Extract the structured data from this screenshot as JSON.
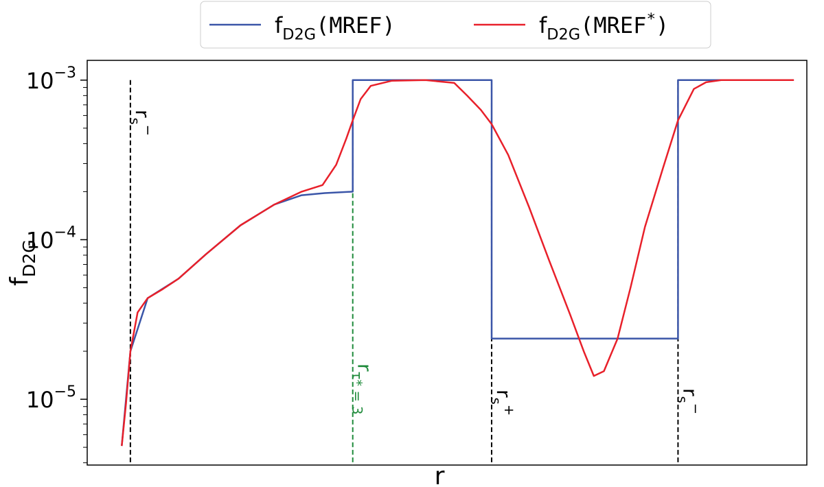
{
  "chart_data": {
    "type": "line",
    "x_label": "r",
    "y_label": {
      "base": "f",
      "sub": "D2G"
    },
    "log_y": true,
    "xlim": [
      0,
      100
    ],
    "ylim": [
      3.87e-06,
      0.00133
    ],
    "yticks": [
      {
        "value": 1e-05,
        "label": "10",
        "exponent": "−5"
      },
      {
        "value": 0.0001,
        "label": "10",
        "exponent": "−4"
      },
      {
        "value": 0.001,
        "label": "10",
        "exponent": "−3"
      }
    ],
    "yminorticks": [
      4e-06,
      5e-06,
      6e-06,
      7e-06,
      8e-06,
      9e-06,
      2e-05,
      3e-05,
      4e-05,
      5e-05,
      6e-05,
      7e-05,
      8e-05,
      9e-05,
      0.0002,
      0.0003,
      0.0004,
      0.0005,
      0.0006,
      0.0007,
      0.0008,
      0.0009
    ],
    "legend": "top-outside",
    "series": [
      {
        "name": {
          "base": "f",
          "sub": "D2G",
          "text": "(MREF)"
        },
        "color": "#3a55a8",
        "x": [
          4.8,
          6.0,
          8.4,
          12.7,
          16.5,
          21.3,
          26.0,
          29.8,
          33.0,
          36.9,
          36.9,
          56.2,
          56.2,
          82.1,
          82.1,
          98.2
        ],
        "values": [
          5.1e-06,
          2e-05,
          4.3e-05,
          5.7e-05,
          8.1e-05,
          0.000123,
          0.000166,
          0.00019,
          0.000196,
          0.0002,
          0.001,
          0.001,
          2.4e-05,
          2.4e-05,
          0.001,
          0.001
        ]
      },
      {
        "name": {
          "base": "f",
          "sub": "D2G",
          "text": "(MREF",
          "sup": "*",
          "tail": ")"
        },
        "color": "#e8202a",
        "x": [
          4.8,
          5.4,
          6.0,
          7.0,
          8.4,
          10.5,
          12.7,
          16.5,
          21.3,
          26.0,
          29.8,
          32.7,
          34.6,
          36.0,
          36.9,
          38.0,
          39.4,
          42.3,
          47.0,
          51.0,
          52.8,
          54.7,
          56.2,
          58.5,
          61.4,
          64.2,
          67.1,
          69.0,
          70.4,
          71.8,
          73.7,
          75.5,
          77.5,
          80.0,
          82.1,
          84.3,
          86.0,
          88.1,
          98.2
        ],
        "values": [
          5.1e-06,
          9.5e-06,
          2e-05,
          3.5e-05,
          4.3e-05,
          4.9e-05,
          5.7e-05,
          8.1e-05,
          0.000123,
          0.000166,
          0.0002,
          0.00022,
          0.000295,
          0.00043,
          0.00056,
          0.00076,
          0.00092,
          0.00099,
          0.001,
          0.00096,
          0.0008,
          0.00065,
          0.00053,
          0.00034,
          0.00016,
          7.4e-05,
          3.4e-05,
          2e-05,
          1.4e-05,
          1.5e-05,
          2.4e-05,
          5e-05,
          0.00012,
          0.00028,
          0.00056,
          0.00088,
          0.00097,
          0.001,
          0.001
        ]
      }
    ],
    "annotations": [
      {
        "x": 6.0,
        "y": 0.001,
        "color": "#000000",
        "label": "r",
        "sub": "s",
        "sup": "−"
      },
      {
        "x": 36.9,
        "y": 0.001,
        "color": "#1e8a3a",
        "label": "r",
        "sub": "τ* = 3"
      },
      {
        "x": 56.2,
        "y": 0.001,
        "color": "#000000",
        "label": "r",
        "sub": "s",
        "sup": "+"
      },
      {
        "x": 82.1,
        "y": 0.001,
        "color": "#000000",
        "label": "r",
        "sub": "s",
        "sup": "−"
      }
    ]
  }
}
